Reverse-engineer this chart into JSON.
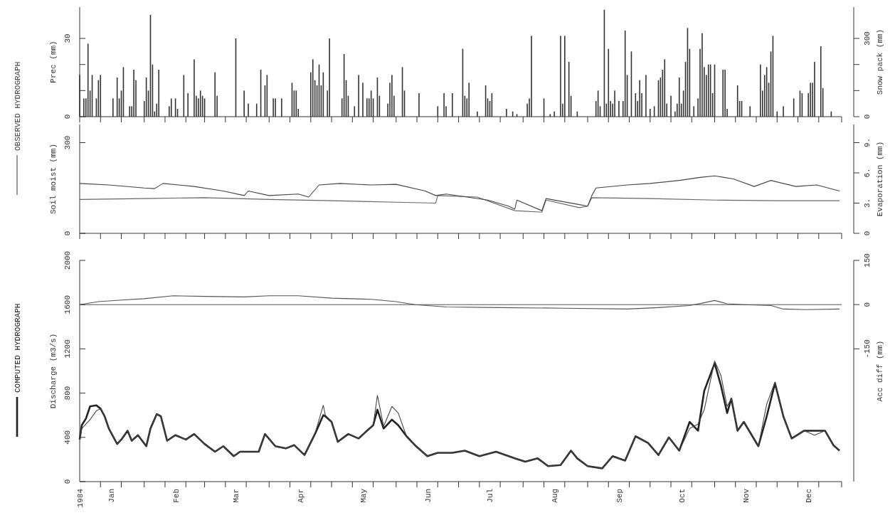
{
  "chart_data": [
    {
      "type": "bar",
      "ylabel": "Prec (mm)",
      "y2label": "Snow pack (mm)",
      "tick_labels": "y",
      "xlim": [
        "1984-01-01",
        "1985-01-01"
      ],
      "xticks": [
        {
          "value": "1984-01-01",
          "label": null
        },
        {
          "value": "1984-01-11",
          "label": null
        },
        {
          "value": "1984-01-21",
          "label": null
        },
        {
          "value": "1984-02-01",
          "label": null
        },
        {
          "value": "1984-02-11",
          "label": null
        },
        {
          "value": "1984-02-21",
          "label": null
        },
        {
          "value": "1984-03-01",
          "label": null
        },
        {
          "value": "1984-03-11",
          "label": null
        },
        {
          "value": "1984-03-21",
          "label": null
        },
        {
          "value": "1984-04-01",
          "label": null
        },
        {
          "value": "1984-04-11",
          "label": null
        },
        {
          "value": "1984-04-21",
          "label": null
        },
        {
          "value": "1984-05-01",
          "label": null
        },
        {
          "value": "1984-05-11",
          "label": null
        },
        {
          "value": "1984-05-21",
          "label": null
        },
        {
          "value": "1984-06-01",
          "label": null
        },
        {
          "value": "1984-06-11",
          "label": null
        },
        {
          "value": "1984-06-21",
          "label": null
        },
        {
          "value": "1984-07-01",
          "label": null
        },
        {
          "value": "1984-07-11",
          "label": null
        },
        {
          "value": "1984-07-21",
          "label": null
        },
        {
          "value": "1984-08-01",
          "label": null
        },
        {
          "value": "1984-08-11",
          "label": null
        },
        {
          "value": "1984-08-21",
          "label": null
        },
        {
          "value": "1984-09-01",
          "label": null
        },
        {
          "value": "1984-09-11",
          "label": null
        },
        {
          "value": "1984-09-21",
          "label": null
        },
        {
          "value": "1984-10-01",
          "label": null
        },
        {
          "value": "1984-10-11",
          "label": null
        },
        {
          "value": "1984-10-21",
          "label": null
        },
        {
          "value": "1984-11-01",
          "label": null
        },
        {
          "value": "1984-11-11",
          "label": null
        },
        {
          "value": "1984-11-21",
          "label": null
        },
        {
          "value": "1984-12-01",
          "label": null
        },
        {
          "value": "1984-12-11",
          "label": null
        },
        {
          "value": "1984-12-21",
          "label": null
        },
        {
          "value": "1985-01-01",
          "label": null
        }
      ],
      "ylim": [
        0,
        42
      ],
      "yticks": [
        0,
        {
          "value": 10,
          "label": null
        },
        {
          "value": 20,
          "label": null
        },
        30
      ],
      "y2lim": [
        0,
        420
      ],
      "y2ticks": [
        0,
        {
          "value": 100,
          "label": null
        },
        {
          "value": 200,
          "label": null
        },
        300
      ],
      "x": [
        "1984-01-01",
        "1984-01-03",
        "1984-01-04",
        "1984-01-05",
        "1984-01-06",
        "1984-01-07",
        "1984-01-09",
        "1984-01-10",
        "1984-01-11",
        "1984-01-17",
        "1984-01-19",
        "1984-01-20",
        "1984-01-21",
        "1984-01-22",
        "1984-01-25",
        "1984-01-26",
        "1984-01-27",
        "1984-01-28",
        "1984-02-01",
        "1984-02-02",
        "1984-02-03",
        "1984-02-04",
        "1984-02-05",
        "1984-02-06",
        "1984-02-07",
        "1984-02-08",
        "1984-02-13",
        "1984-02-14",
        "1984-02-16",
        "1984-02-17",
        "1984-02-20",
        "1984-02-22",
        "1984-02-25",
        "1984-02-26",
        "1984-02-27",
        "1984-02-28",
        "1984-02-29",
        "1984-03-01",
        "1984-03-06",
        "1984-03-07",
        "1984-03-16",
        "1984-03-20",
        "1984-03-22",
        "1984-03-26",
        "1984-03-28",
        "1984-03-30",
        "1984-03-31",
        "1984-04-03",
        "1984-04-04",
        "1984-04-07",
        "1984-04-12",
        "1984-04-13",
        "1984-04-14",
        "1984-04-15",
        "1984-04-21",
        "1984-04-22",
        "1984-04-23",
        "1984-04-24",
        "1984-04-25",
        "1984-04-26",
        "1984-04-27",
        "1984-04-29",
        "1984-04-30",
        "1984-05-06",
        "1984-05-07",
        "1984-05-08",
        "1984-05-09",
        "1984-05-12",
        "1984-05-14",
        "1984-05-16",
        "1984-05-18",
        "1984-05-19",
        "1984-05-20",
        "1984-05-21",
        "1984-05-23",
        "1984-05-24",
        "1984-05-28",
        "1984-05-29",
        "1984-05-30",
        "1984-05-31",
        "1984-06-04",
        "1984-06-05",
        "1984-06-12",
        "1984-06-21",
        "1984-06-24",
        "1984-06-25",
        "1984-06-28",
        "1984-07-03",
        "1984-07-04",
        "1984-07-05",
        "1984-07-06",
        "1984-07-10",
        "1984-07-14",
        "1984-07-15",
        "1984-07-16",
        "1984-07-17",
        "1984-07-24",
        "1984-07-27",
        "1984-07-29",
        "1984-08-03",
        "1984-08-04",
        "1984-08-05",
        "1984-08-11",
        "1984-08-14",
        "1984-08-16",
        "1984-08-19",
        "1984-08-20",
        "1984-08-21",
        "1984-08-23",
        "1984-08-24",
        "1984-08-27",
        "1984-09-05",
        "1984-09-06",
        "1984-09-07",
        "1984-09-09",
        "1984-09-10",
        "1984-09-11",
        "1984-09-12",
        "1984-09-13",
        "1984-09-14",
        "1984-09-16",
        "1984-09-18",
        "1984-09-19",
        "1984-09-20",
        "1984-09-22",
        "1984-09-24",
        "1984-09-25",
        "1984-09-26",
        "1984-09-27",
        "1984-09-29",
        "1984-10-01",
        "1984-10-03",
        "1984-10-05",
        "1984-10-06",
        "1984-10-07",
        "1984-10-08",
        "1984-10-09",
        "1984-10-11",
        "1984-10-13",
        "1984-10-14",
        "1984-10-15",
        "1984-10-16",
        "1984-10-17",
        "1984-10-18",
        "1984-10-19",
        "1984-10-20",
        "1984-10-22",
        "1984-10-24",
        "1984-10-25",
        "1984-10-26",
        "1984-10-27",
        "1984-10-28",
        "1984-10-29",
        "1984-10-30",
        "1984-10-31",
        "1984-11-01",
        "1984-11-05",
        "1984-11-06",
        "1984-11-07",
        "1984-11-12",
        "1984-11-13",
        "1984-11-14",
        "1984-11-18",
        "1984-11-23",
        "1984-11-24",
        "1984-11-25",
        "1984-11-26",
        "1984-11-27",
        "1984-11-28",
        "1984-11-29",
        "1984-12-01",
        "1984-12-04",
        "1984-12-09",
        "1984-12-12",
        "1984-12-13",
        "1984-12-16",
        "1984-12-17",
        "1984-12-18",
        "1984-12-19",
        "1984-12-22",
        "1984-12-23",
        "1984-12-27"
      ],
      "series": [
        {
          "color": "#333333",
          "values": [
            16,
            7,
            7,
            28,
            10,
            16,
            7,
            14,
            16,
            7,
            15,
            7,
            10,
            19,
            4,
            4,
            18,
            14,
            6,
            15,
            10,
            39,
            20,
            2,
            5,
            18,
            4,
            7,
            7,
            3,
            16,
            9,
            22,
            8,
            7,
            10,
            8,
            7,
            17,
            8,
            30,
            10,
            5,
            5,
            18,
            12,
            16,
            7,
            7,
            7,
            13,
            10,
            10,
            3,
            17,
            22,
            14,
            12,
            20,
            12,
            17,
            10,
            30,
            7,
            24,
            14,
            8,
            4,
            16,
            13,
            7,
            7,
            10,
            7,
            15,
            8,
            5,
            13,
            16,
            8,
            19,
            10,
            9,
            4,
            9,
            4,
            9,
            26,
            8,
            7,
            13,
            2,
            12,
            7,
            6,
            9,
            3,
            2,
            1,
            5,
            7,
            31,
            7,
            1,
            2,
            31,
            5,
            31,
            21,
            8,
            2,
            6,
            10,
            4,
            41,
            5,
            26,
            6,
            5,
            10,
            6,
            6,
            33,
            16,
            25,
            9,
            6,
            14,
            9,
            16,
            3,
            4,
            14,
            15,
            18,
            22,
            5,
            8,
            2,
            5,
            15,
            5,
            10,
            21,
            34,
            26,
            4,
            7,
            26,
            32,
            19,
            16,
            20,
            20,
            9,
            20,
            18,
            18,
            3,
            12,
            6,
            6,
            4,
            20,
            10,
            16,
            19,
            13,
            25,
            31,
            2,
            4,
            7,
            10,
            9,
            9,
            13,
            13,
            21,
            27,
            11,
            2
          ]
        }
      ]
    },
    {
      "type": "line",
      "ylabel": "Soil moist (mm)",
      "y2label": "Evaporation (mm)",
      "tick_labels": "y",
      "xlim": [
        "1984-01-01",
        "1985-01-01"
      ],
      "xticks": [
        {
          "value": "1984-01-01",
          "label": null
        },
        {
          "value": "1984-01-11",
          "label": null
        },
        {
          "value": "1984-01-21",
          "label": null
        },
        {
          "value": "1984-02-01",
          "label": null
        },
        {
          "value": "1984-02-11",
          "label": null
        },
        {
          "value": "1984-02-21",
          "label": null
        },
        {
          "value": "1984-03-01",
          "label": null
        },
        {
          "value": "1984-03-11",
          "label": null
        },
        {
          "value": "1984-03-21",
          "label": null
        },
        {
          "value": "1984-04-01",
          "label": null
        },
        {
          "value": "1984-04-11",
          "label": null
        },
        {
          "value": "1984-04-21",
          "label": null
        },
        {
          "value": "1984-05-01",
          "label": null
        },
        {
          "value": "1984-05-11",
          "label": null
        },
        {
          "value": "1984-05-21",
          "label": null
        },
        {
          "value": "1984-06-01",
          "label": null
        },
        {
          "value": "1984-06-11",
          "label": null
        },
        {
          "value": "1984-06-21",
          "label": null
        },
        {
          "value": "1984-07-01",
          "label": null
        },
        {
          "value": "1984-07-11",
          "label": null
        },
        {
          "value": "1984-07-21",
          "label": null
        },
        {
          "value": "1984-08-01",
          "label": null
        },
        {
          "value": "1984-08-11",
          "label": null
        },
        {
          "value": "1984-08-21",
          "label": null
        },
        {
          "value": "1984-09-01",
          "label": null
        },
        {
          "value": "1984-09-11",
          "label": null
        },
        {
          "value": "1984-09-21",
          "label": null
        },
        {
          "value": "1984-10-01",
          "label": null
        },
        {
          "value": "1984-10-11",
          "label": null
        },
        {
          "value": "1984-10-21",
          "label": null
        },
        {
          "value": "1984-11-01",
          "label": null
        },
        {
          "value": "1984-11-11",
          "label": null
        },
        {
          "value": "1984-11-21",
          "label": null
        },
        {
          "value": "1984-12-01",
          "label": null
        },
        {
          "value": "1984-12-11",
          "label": null
        },
        {
          "value": "1984-12-21",
          "label": null
        },
        {
          "value": "1985-01-01",
          "label": null
        }
      ],
      "ylim": [
        0,
        360
      ],
      "yticks": [
        0,
        300
      ],
      "y2lim": [
        0,
        10.8
      ],
      "y2ticks": [
        {
          "value": 0,
          "label": "0"
        },
        {
          "value": 3,
          "label": "3."
        },
        {
          "value": 6,
          "label": "6."
        },
        {
          "value": 9,
          "label": "9."
        }
      ],
      "series": [
        {
          "color": "#444444",
          "x": [
            "1984-01-01",
            "1984-01-15",
            "1984-02-01",
            "1984-02-06",
            "1984-02-10",
            "1984-02-25",
            "1984-03-10",
            "1984-03-20",
            "1984-03-22",
            "1984-04-01",
            "1984-04-15",
            "1984-04-20",
            "1984-04-25",
            "1984-05-05",
            "1984-05-20",
            "1984-06-01",
            "1984-06-15",
            "1984-06-20",
            "1984-06-25",
            "1984-07-05",
            "1984-07-15",
            "1984-07-25",
            "1984-07-28",
            "1984-07-29",
            "1984-08-10",
            "1984-08-12",
            "1984-08-20",
            "1984-08-28",
            "1984-09-01",
            "1984-09-03",
            "1984-09-05",
            "1984-09-20",
            "1984-10-01",
            "1984-10-15",
            "1984-10-25",
            "1984-11-01",
            "1984-11-10",
            "1984-11-20",
            "1984-11-28",
            "1984-12-10",
            "1984-12-20",
            "1984-12-31"
          ],
          "values": [
            165,
            160,
            150,
            148,
            165,
            155,
            140,
            125,
            140,
            125,
            130,
            120,
            160,
            165,
            160,
            162,
            140,
            125,
            130,
            120,
            110,
            90,
            80,
            110,
            75,
            115,
            105,
            95,
            90,
            125,
            150,
            160,
            165,
            175,
            185,
            190,
            180,
            155,
            175,
            155,
            160,
            140
          ]
        },
        {
          "color": "#666666",
          "x": [
            "1984-01-01",
            "1984-02-01",
            "1984-03-01",
            "1984-04-01",
            "1984-05-01",
            "1984-06-01",
            "1984-06-20",
            "1984-06-21",
            "1984-07-10",
            "1984-07-28",
            "1984-08-10",
            "1984-08-12",
            "1984-08-28",
            "1984-09-01",
            "1984-09-03",
            "1984-10-01",
            "1984-11-01",
            "1984-12-01",
            "1984-12-31"
          ],
          "values": [
            112,
            115,
            118,
            112,
            108,
            103,
            100,
            125,
            120,
            75,
            70,
            110,
            85,
            90,
            118,
            115,
            110,
            108,
            108
          ]
        }
      ]
    },
    {
      "type": "line",
      "ylabel": "Discharge (m3/s)",
      "y2label": "Acc diff (mm)",
      "legend": "left",
      "xlim": [
        "1984-01-01",
        "1985-01-01"
      ],
      "xticks": [
        {
          "value": "1984-01-01",
          "label": "1984"
        },
        {
          "value": "1984-01-11",
          "label": null
        },
        {
          "value": "1984-01-16",
          "label": "Jan"
        },
        {
          "value": "1984-01-21",
          "label": null
        },
        {
          "value": "1984-02-01",
          "label": null
        },
        {
          "value": "1984-02-11",
          "label": null
        },
        {
          "value": "1984-02-16",
          "label": "Feb"
        },
        {
          "value": "1984-02-21",
          "label": null
        },
        {
          "value": "1984-03-01",
          "label": null
        },
        {
          "value": "1984-03-11",
          "label": null
        },
        {
          "value": "1984-03-16",
          "label": "Mar"
        },
        {
          "value": "1984-03-21",
          "label": null
        },
        {
          "value": "1984-04-01",
          "label": null
        },
        {
          "value": "1984-04-11",
          "label": null
        },
        {
          "value": "1984-04-16",
          "label": "Apr"
        },
        {
          "value": "1984-04-21",
          "label": null
        },
        {
          "value": "1984-05-01",
          "label": null
        },
        {
          "value": "1984-05-11",
          "label": null
        },
        {
          "value": "1984-05-16",
          "label": "May"
        },
        {
          "value": "1984-05-21",
          "label": null
        },
        {
          "value": "1984-06-01",
          "label": null
        },
        {
          "value": "1984-06-11",
          "label": null
        },
        {
          "value": "1984-06-16",
          "label": "Jun"
        },
        {
          "value": "1984-06-21",
          "label": null
        },
        {
          "value": "1984-07-01",
          "label": null
        },
        {
          "value": "1984-07-11",
          "label": null
        },
        {
          "value": "1984-07-16",
          "label": "Jul"
        },
        {
          "value": "1984-07-21",
          "label": null
        },
        {
          "value": "1984-08-01",
          "label": null
        },
        {
          "value": "1984-08-11",
          "label": null
        },
        {
          "value": "1984-08-16",
          "label": "Aug"
        },
        {
          "value": "1984-08-21",
          "label": null
        },
        {
          "value": "1984-09-01",
          "label": null
        },
        {
          "value": "1984-09-11",
          "label": null
        },
        {
          "value": "1984-09-16",
          "label": "Sep"
        },
        {
          "value": "1984-09-21",
          "label": null
        },
        {
          "value": "1984-10-01",
          "label": null
        },
        {
          "value": "1984-10-11",
          "label": null
        },
        {
          "value": "1984-10-16",
          "label": "Oct"
        },
        {
          "value": "1984-10-21",
          "label": null
        },
        {
          "value": "1984-11-01",
          "label": null
        },
        {
          "value": "1984-11-11",
          "label": null
        },
        {
          "value": "1984-11-16",
          "label": "Nov"
        },
        {
          "value": "1984-11-21",
          "label": null
        },
        {
          "value": "1984-12-01",
          "label": null
        },
        {
          "value": "1984-12-11",
          "label": null
        },
        {
          "value": "1984-12-16",
          "label": "Dec"
        },
        {
          "value": "1984-12-21",
          "label": null
        },
        {
          "value": "1985-01-01",
          "label": null
        }
      ],
      "ylim": [
        0,
        2000
      ],
      "yticks": [
        0,
        400,
        800,
        1200,
        1600,
        2000
      ],
      "y2lim": [
        -600,
        150
      ],
      "y2ticks": [
        -150,
        0,
        150
      ],
      "ref_lines": [
        {
          "axis": "y2",
          "value": 0,
          "color": "#555555"
        }
      ],
      "x": [
        "1984-01-01",
        "1984-01-02",
        "1984-01-04",
        "1984-01-06",
        "1984-01-09",
        "1984-01-11",
        "1984-01-13",
        "1984-01-15",
        "1984-01-19",
        "1984-01-21",
        "1984-01-24",
        "1984-01-26",
        "1984-01-29",
        "1984-02-02",
        "1984-02-04",
        "1984-02-07",
        "1984-02-09",
        "1984-02-12",
        "1984-02-16",
        "1984-02-21",
        "1984-02-25",
        "1984-03-01",
        "1984-03-06",
        "1984-03-10",
        "1984-03-15",
        "1984-03-18",
        "1984-03-23",
        "1984-03-27",
        "1984-03-30",
        "1984-04-04",
        "1984-04-09",
        "1984-04-13",
        "1984-04-18",
        "1984-04-23",
        "1984-04-27",
        "1984-04-28",
        "1984-05-01",
        "1984-05-04",
        "1984-05-09",
        "1984-05-14",
        "1984-05-18",
        "1984-05-21",
        "1984-05-23",
        "1984-05-26",
        "1984-05-30",
        "1984-06-02",
        "1984-06-06",
        "1984-06-10",
        "1984-06-16",
        "1984-06-21",
        "1984-06-28",
        "1984-07-04",
        "1984-07-11",
        "1984-07-19",
        "1984-07-28",
        "1984-08-02",
        "1984-08-08",
        "1984-08-13",
        "1984-08-19",
        "1984-08-24",
        "1984-08-27",
        "1984-09-01",
        "1984-09-08",
        "1984-09-13",
        "1984-09-19",
        "1984-09-24",
        "1984-09-30",
        "1984-10-05",
        "1984-10-10",
        "1984-10-15",
        "1984-10-20",
        "1984-10-24",
        "1984-10-27",
        "1984-11-01",
        "1984-11-04",
        "1984-11-07",
        "1984-11-09",
        "1984-11-12",
        "1984-11-15",
        "1984-11-22",
        "1984-11-26",
        "1984-11-30",
        "1984-12-04",
        "1984-12-08",
        "1984-12-14",
        "1984-12-19",
        "1984-12-24",
        "1984-12-28",
        "1984-12-31"
      ],
      "series": [
        {
          "name": "OBSERVED HYDROGRAPH",
          "color": "#444444",
          "values": [
            380,
            480,
            520,
            560,
            640,
            660,
            590,
            480,
            340,
            380,
            460,
            370,
            420,
            320,
            480,
            610,
            590,
            370,
            420,
            380,
            430,
            340,
            270,
            320,
            230,
            270,
            270,
            270,
            430,
            320,
            300,
            330,
            240,
            430,
            690,
            600,
            540,
            360,
            430,
            390,
            460,
            510,
            780,
            500,
            680,
            620,
            410,
            330,
            230,
            260,
            260,
            280,
            230,
            270,
            210,
            180,
            210,
            140,
            150,
            280,
            210,
            140,
            120,
            230,
            190,
            410,
            350,
            240,
            400,
            280,
            480,
            520,
            650,
            1090,
            960,
            680,
            750,
            460,
            540,
            320,
            700,
            900,
            590,
            390,
            460,
            420,
            460,
            330,
            280
          ]
        },
        {
          "name": "COMPUTED HYDROGRAPH",
          "color": "#222222",
          "values": [
            380,
            510,
            570,
            680,
            690,
            660,
            590,
            480,
            340,
            380,
            460,
            370,
            420,
            320,
            480,
            610,
            590,
            370,
            420,
            380,
            430,
            340,
            270,
            320,
            230,
            270,
            270,
            270,
            430,
            320,
            300,
            330,
            240,
            430,
            600,
            590,
            540,
            360,
            430,
            390,
            460,
            510,
            650,
            480,
            560,
            510,
            410,
            330,
            230,
            260,
            260,
            280,
            230,
            270,
            210,
            180,
            210,
            140,
            150,
            280,
            210,
            140,
            120,
            230,
            190,
            410,
            350,
            240,
            400,
            280,
            540,
            460,
            820,
            1070,
            870,
            620,
            750,
            460,
            540,
            320,
            590,
            890,
            590,
            390,
            460,
            460,
            460,
            330,
            280
          ]
        },
        {
          "type": "line",
          "axis": "y2",
          "color": "#555555",
          "x": [
            "1984-01-01",
            "1984-01-10",
            "1984-01-20",
            "1984-02-01",
            "1984-02-15",
            "1984-03-01",
            "1984-03-20",
            "1984-04-01",
            "1984-04-15",
            "1984-05-01",
            "1984-05-20",
            "1984-06-01",
            "1984-06-10",
            "1984-06-25",
            "1984-07-20",
            "1984-08-20",
            "1984-09-20",
            "1984-10-05",
            "1984-10-20",
            "1984-10-26",
            "1984-11-01",
            "1984-11-07",
            "1984-11-15",
            "1984-11-28",
            "1984-12-04",
            "1984-12-15",
            "1984-12-31"
          ],
          "values": [
            0,
            10,
            15,
            20,
            30,
            28,
            26,
            30,
            30,
            22,
            18,
            10,
            0,
            -8,
            -10,
            -12,
            -15,
            -10,
            -3,
            5,
            14,
            3,
            0,
            -3,
            -15,
            -17,
            -15
          ]
        }
      ]
    }
  ]
}
